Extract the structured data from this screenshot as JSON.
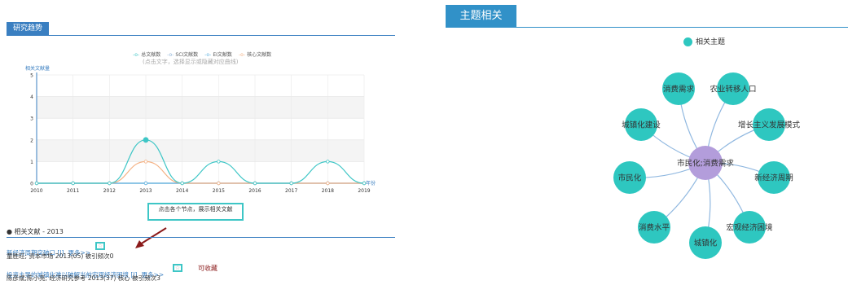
{
  "left_panel": {
    "tab_label": "研究趋势",
    "legend": [
      {
        "label": "总文献数",
        "color": "#3ec6c6"
      },
      {
        "label": "SCI文献数",
        "color": "#8ab0d6"
      },
      {
        "label": "EI文献数",
        "color": "#5bb0de"
      },
      {
        "label": "核心文献数",
        "color": "#f4b183"
      }
    ],
    "legend_hint": "(点击文字，选择显示或隐藏对应曲线)",
    "callout": "点击各个节点，展示相关文献",
    "related_heading": "相关文献 - 2013",
    "papers": [
      {
        "title": "新经济周期突破口 [J]",
        "more": "更多>>",
        "meta": "童胜旺; 资本市场  2013(05)    被引频次0"
      },
      {
        "title": "投资主导的城镇化难以破解当前宏观经济困境 [J]",
        "more": "更多>>",
        "meta": "陈彦斌;陈小亮; 经济研究参考  2013(37)  核心    被引频次3"
      }
    ],
    "collect_note": "可收藏"
  },
  "chart_data": {
    "type": "line",
    "ylabel": "相关文献量",
    "xlabel": "年份",
    "x": [
      2010,
      2011,
      2012,
      2013,
      2014,
      2015,
      2016,
      2017,
      2018,
      2019
    ],
    "ylim": [
      0,
      5
    ],
    "yticks": [
      0,
      1,
      2,
      3,
      4,
      5
    ],
    "grid": true,
    "legend_position": "top",
    "series": [
      {
        "name": "总文献数",
        "color": "#3ec6c6",
        "values": [
          0,
          0,
          0,
          2,
          0,
          1,
          0,
          0,
          1,
          0
        ]
      },
      {
        "name": "SCI文献数",
        "color": "#8ab0d6",
        "values": [
          0,
          0,
          0,
          0,
          0,
          0,
          0,
          0,
          0,
          0
        ]
      },
      {
        "name": "EI文献数",
        "color": "#5bb0de",
        "values": [
          0,
          0,
          0,
          0,
          0,
          0,
          0,
          0,
          0,
          0
        ]
      },
      {
        "name": "核心文献数",
        "color": "#f4b183",
        "values": [
          0,
          0,
          0,
          1,
          0,
          0,
          0,
          0,
          0,
          0
        ]
      }
    ],
    "highlight": {
      "x": 2013,
      "series": "总文献数"
    }
  },
  "right_panel": {
    "tab_label": "主题相关",
    "legend_label": "相关主题",
    "node_color": "#2ec7c0",
    "center_color": "#b39ddb",
    "center_label": "市民化;消费需求",
    "topics": [
      "消费需求",
      "农业转移人口",
      "增长主义发展模式",
      "新经济周期",
      "宏观经济困境",
      "城镇化",
      "消费水平",
      "市民化",
      "城镇化建设"
    ]
  }
}
